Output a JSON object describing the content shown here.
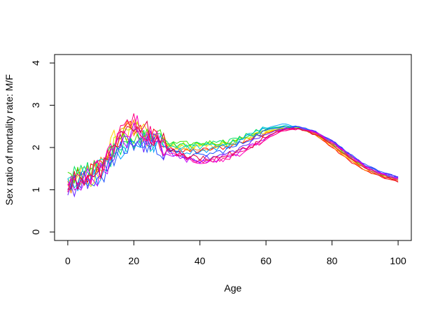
{
  "chart_data": {
    "type": "line",
    "title": "",
    "xlabel": "Age",
    "ylabel": "Sex ratio of mortality rate: M/F",
    "xlim": [
      -4,
      104
    ],
    "ylim": [
      -0.2,
      4.2
    ],
    "xticks": [
      "0",
      "20",
      "40",
      "60",
      "80",
      "100"
    ],
    "yticks": [
      "0",
      "1",
      "2",
      "3",
      "4"
    ],
    "grid": false,
    "legend": "none",
    "x": [
      0,
      5,
      10,
      15,
      20,
      25,
      30,
      35,
      40,
      45,
      50,
      55,
      60,
      65,
      70,
      75,
      80,
      85,
      90,
      95,
      100
    ],
    "palette": [
      "#ff0000",
      "#ff8000",
      "#ffd000",
      "#c0f000",
      "#40e000",
      "#00e060",
      "#00d0c0",
      "#00a0ff",
      "#2050ff",
      "#6020ff",
      "#c000ff",
      "#ff00c0",
      "#ff0080",
      "#e00040"
    ],
    "series": [
      {
        "values": [
          1.05,
          1.3,
          1.55,
          2.15,
          2.5,
          2.25,
          2.0,
          1.9,
          1.92,
          1.98,
          2.05,
          2.2,
          2.35,
          2.45,
          2.45,
          2.3,
          2.0,
          1.7,
          1.45,
          1.3,
          1.18
        ]
      },
      {
        "values": [
          1.1,
          1.35,
          1.6,
          2.2,
          2.45,
          2.25,
          2.02,
          1.95,
          1.96,
          2.0,
          2.08,
          2.22,
          2.36,
          2.45,
          2.45,
          2.3,
          2.02,
          1.72,
          1.47,
          1.32,
          1.2
        ]
      },
      {
        "values": [
          1.12,
          1.3,
          1.5,
          2.3,
          2.4,
          2.2,
          2.05,
          2.0,
          2.0,
          2.05,
          2.1,
          2.25,
          2.38,
          2.46,
          2.45,
          2.32,
          2.05,
          1.75,
          1.5,
          1.34,
          1.22
        ]
      },
      {
        "values": [
          1.15,
          1.25,
          1.45,
          2.1,
          2.35,
          2.2,
          2.08,
          2.05,
          2.05,
          2.08,
          2.12,
          2.28,
          2.4,
          2.47,
          2.46,
          2.33,
          2.07,
          1.78,
          1.52,
          1.35,
          1.24
        ]
      },
      {
        "values": [
          1.18,
          1.35,
          1.55,
          2.0,
          2.3,
          2.25,
          2.1,
          2.08,
          2.1,
          2.12,
          2.15,
          2.3,
          2.42,
          2.48,
          2.46,
          2.34,
          2.1,
          1.8,
          1.54,
          1.36,
          1.25
        ]
      },
      {
        "values": [
          1.2,
          1.4,
          1.6,
          1.95,
          2.25,
          2.2,
          2.1,
          2.05,
          2.08,
          2.1,
          2.15,
          2.32,
          2.45,
          2.5,
          2.47,
          2.35,
          2.12,
          1.82,
          1.55,
          1.37,
          1.26
        ]
      },
      {
        "values": [
          1.15,
          1.3,
          1.5,
          1.9,
          2.2,
          2.15,
          2.05,
          2.0,
          2.02,
          2.05,
          2.12,
          2.3,
          2.45,
          2.52,
          2.48,
          2.36,
          2.14,
          1.84,
          1.56,
          1.38,
          1.28
        ]
      },
      {
        "values": [
          1.1,
          1.25,
          1.4,
          1.85,
          2.15,
          2.1,
          2.0,
          1.9,
          1.92,
          1.98,
          2.08,
          2.28,
          2.45,
          2.55,
          2.5,
          2.38,
          2.16,
          1.86,
          1.58,
          1.4,
          1.3
        ]
      },
      {
        "values": [
          1.05,
          1.2,
          1.35,
          1.8,
          2.1,
          2.05,
          1.95,
          1.8,
          1.8,
          1.88,
          2.0,
          2.2,
          2.4,
          2.5,
          2.5,
          2.38,
          2.17,
          1.87,
          1.59,
          1.41,
          1.31
        ]
      },
      {
        "values": [
          1.0,
          1.2,
          1.3,
          1.9,
          2.2,
          2.1,
          1.92,
          1.75,
          1.72,
          1.78,
          1.9,
          2.1,
          2.32,
          2.45,
          2.48,
          2.37,
          2.16,
          1.86,
          1.58,
          1.4,
          1.3
        ]
      },
      {
        "values": [
          1.05,
          1.25,
          1.4,
          2.0,
          2.35,
          2.2,
          1.9,
          1.72,
          1.7,
          1.72,
          1.82,
          2.02,
          2.25,
          2.42,
          2.46,
          2.36,
          2.14,
          1.84,
          1.56,
          1.38,
          1.28
        ]
      },
      {
        "values": [
          1.0,
          1.3,
          1.5,
          2.1,
          2.55,
          2.3,
          1.95,
          1.75,
          1.68,
          1.7,
          1.78,
          1.98,
          2.2,
          2.4,
          2.45,
          2.35,
          2.12,
          1.82,
          1.55,
          1.36,
          1.25
        ]
      },
      {
        "values": [
          1.05,
          1.35,
          1.45,
          2.2,
          2.65,
          2.35,
          2.0,
          1.78,
          1.7,
          1.72,
          1.8,
          1.98,
          2.22,
          2.4,
          2.44,
          2.34,
          2.1,
          1.8,
          1.53,
          1.35,
          1.22
        ]
      },
      {
        "values": [
          1.1,
          1.3,
          1.5,
          2.25,
          2.6,
          2.3,
          2.0,
          1.8,
          1.75,
          1.76,
          1.85,
          2.02,
          2.25,
          2.42,
          2.44,
          2.32,
          2.06,
          1.76,
          1.5,
          1.32,
          1.2
        ]
      }
    ]
  }
}
